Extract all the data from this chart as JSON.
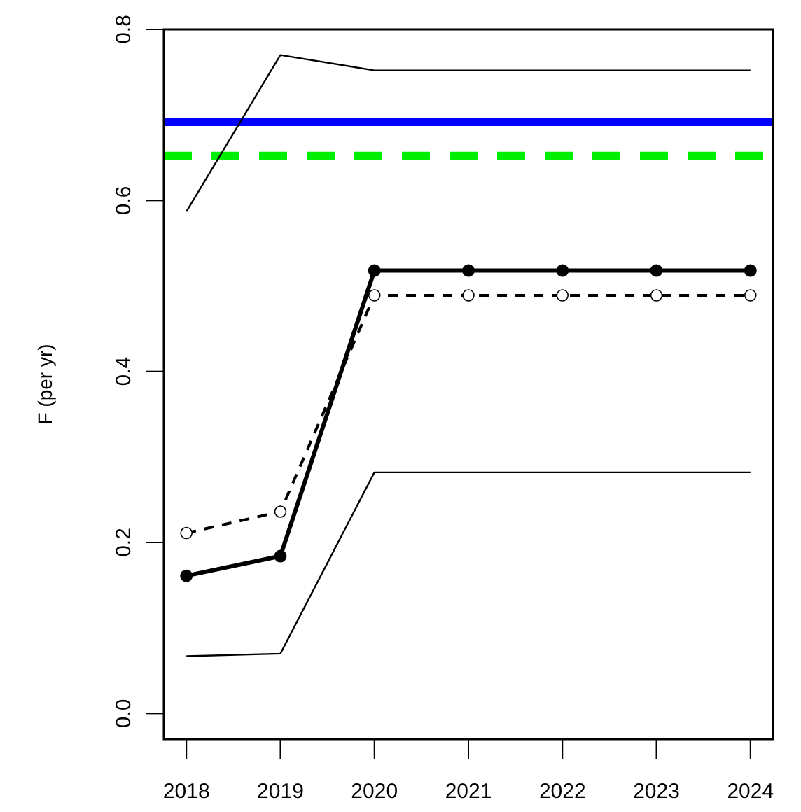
{
  "chart_data": {
    "type": "line",
    "ylabel": "F (per yr)",
    "x": [
      2018,
      2019,
      2020,
      2021,
      2022,
      2023,
      2024
    ],
    "xlim": [
      2017.76,
      2024.24
    ],
    "xticks": [
      2018,
      2019,
      2020,
      2021,
      2022,
      2023,
      2024
    ],
    "ylim": [
      -0.03,
      0.8
    ],
    "yticks": [
      {
        "value": 0,
        "label": "0.0"
      },
      0.2,
      0.4,
      0.6,
      0.8
    ],
    "grid": false,
    "series": [
      {
        "color": "#000000",
        "values": [
          0.587,
          0.77,
          0.752,
          0.752,
          0.752,
          0.752,
          0.752
        ],
        "marker": "none",
        "line_style": "solid"
      },
      {
        "color": "#000000",
        "values": [
          0.161,
          0.184,
          0.518,
          0.518,
          0.518,
          0.518,
          0.518
        ],
        "marker": "circle",
        "line_style": "solid"
      },
      {
        "color": "#000000",
        "values": [
          0.211,
          0.236,
          0.489,
          0.489,
          0.489,
          0.489,
          0.489
        ],
        "marker": "circle",
        "line_style": "dashed"
      },
      {
        "color": "#000000",
        "values": [
          0.067,
          0.07,
          0.282,
          0.282,
          0.282,
          0.282,
          0.282
        ],
        "marker": "none",
        "line_style": "solid"
      }
    ],
    "ref_lines": [
      {
        "axis": "y",
        "value": 0.692,
        "color": "#0000ff",
        "line_style": "solid"
      },
      {
        "axis": "y",
        "value": 0.652,
        "color": "#00ee00",
        "line_style": "dashed"
      }
    ]
  }
}
